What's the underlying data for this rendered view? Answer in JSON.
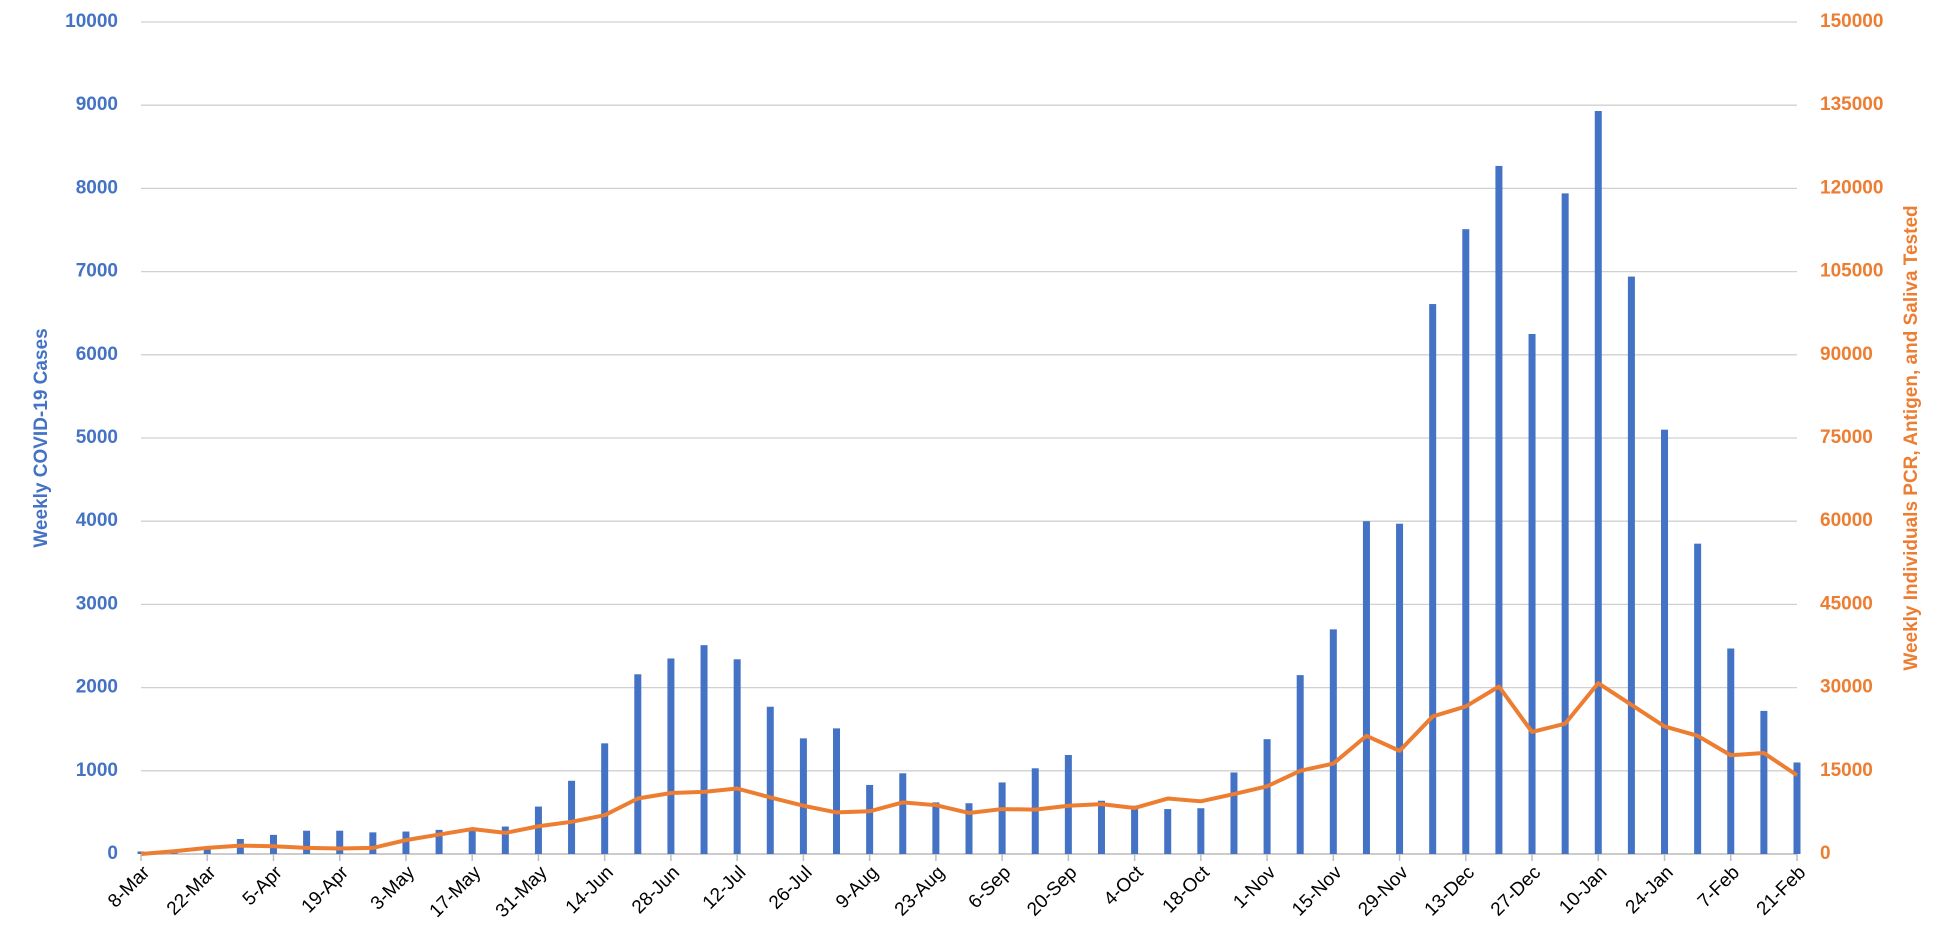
{
  "chart_data": {
    "type": "bar_line",
    "y_label": "Weekly COVID-19 Cases",
    "y2_label": "Weekly Individuals PCR, Antigen, and Saliva Tested",
    "categories": [
      "8-Mar",
      null,
      "22-Mar",
      null,
      "5-Apr",
      null,
      "19-Apr",
      null,
      "3-May",
      null,
      "17-May",
      null,
      "31-May",
      null,
      "14-Jun",
      null,
      "28-Jun",
      null,
      "12-Jul",
      null,
      "26-Jul",
      null,
      "9-Aug",
      null,
      "23-Aug",
      null,
      "6-Sep",
      null,
      "20-Sep",
      null,
      "4-Oct",
      null,
      "18-Oct",
      null,
      "1-Nov",
      null,
      "15-Nov",
      null,
      "29-Nov",
      null,
      "13-Dec",
      null,
      "27-Dec",
      null,
      "10-Jan",
      null,
      "24-Jan",
      null,
      "7-Feb",
      null,
      "21-Feb"
    ],
    "series": [
      {
        "name": "Weekly COVID-19 Cases",
        "type": "bar",
        "color": "#4472c4",
        "values": [
          30,
          10,
          60,
          180,
          230,
          280,
          280,
          260,
          270,
          290,
          300,
          330,
          570,
          880,
          1330,
          2160,
          2350,
          2510,
          2340,
          1770,
          1390,
          1510,
          830,
          970,
          620,
          610,
          860,
          1030,
          1190,
          640,
          580,
          540,
          550,
          980,
          1380,
          2150,
          2700,
          4000,
          3970,
          6610,
          7510,
          8270,
          6250,
          7940,
          8930,
          6940,
          5100,
          3730,
          2470,
          1720,
          1100
        ]
      },
      {
        "name": "Weekly Individuals PCR, Antigen, and Saliva Tested",
        "type": "line",
        "axis": "y2",
        "color": "#ed7d31",
        "values": [
          0,
          500,
          1100,
          1500,
          1400,
          1100,
          1000,
          1100,
          2500,
          3500,
          4500,
          3800,
          5000,
          5800,
          7000,
          10000,
          11000,
          11200,
          11800,
          10200,
          8700,
          7500,
          7700,
          9300,
          8800,
          7400,
          8100,
          8000,
          8700,
          9000,
          8300,
          10000,
          9500,
          10800,
          12200,
          15000,
          16300,
          21300,
          18600,
          24800,
          26600,
          30200,
          22000,
          23500,
          30800,
          26900,
          23000,
          21300,
          17800,
          18200,
          14200
        ]
      }
    ],
    "ylim": [
      0,
      10000
    ],
    "yticks": [
      0,
      1000,
      2000,
      3000,
      4000,
      5000,
      6000,
      7000,
      8000,
      9000,
      10000
    ],
    "y2lim": [
      0,
      150000
    ],
    "y2ticks": [
      0,
      15000,
      30000,
      45000,
      60000,
      75000,
      90000,
      105000,
      120000,
      135000,
      150000
    ],
    "grid": true
  }
}
